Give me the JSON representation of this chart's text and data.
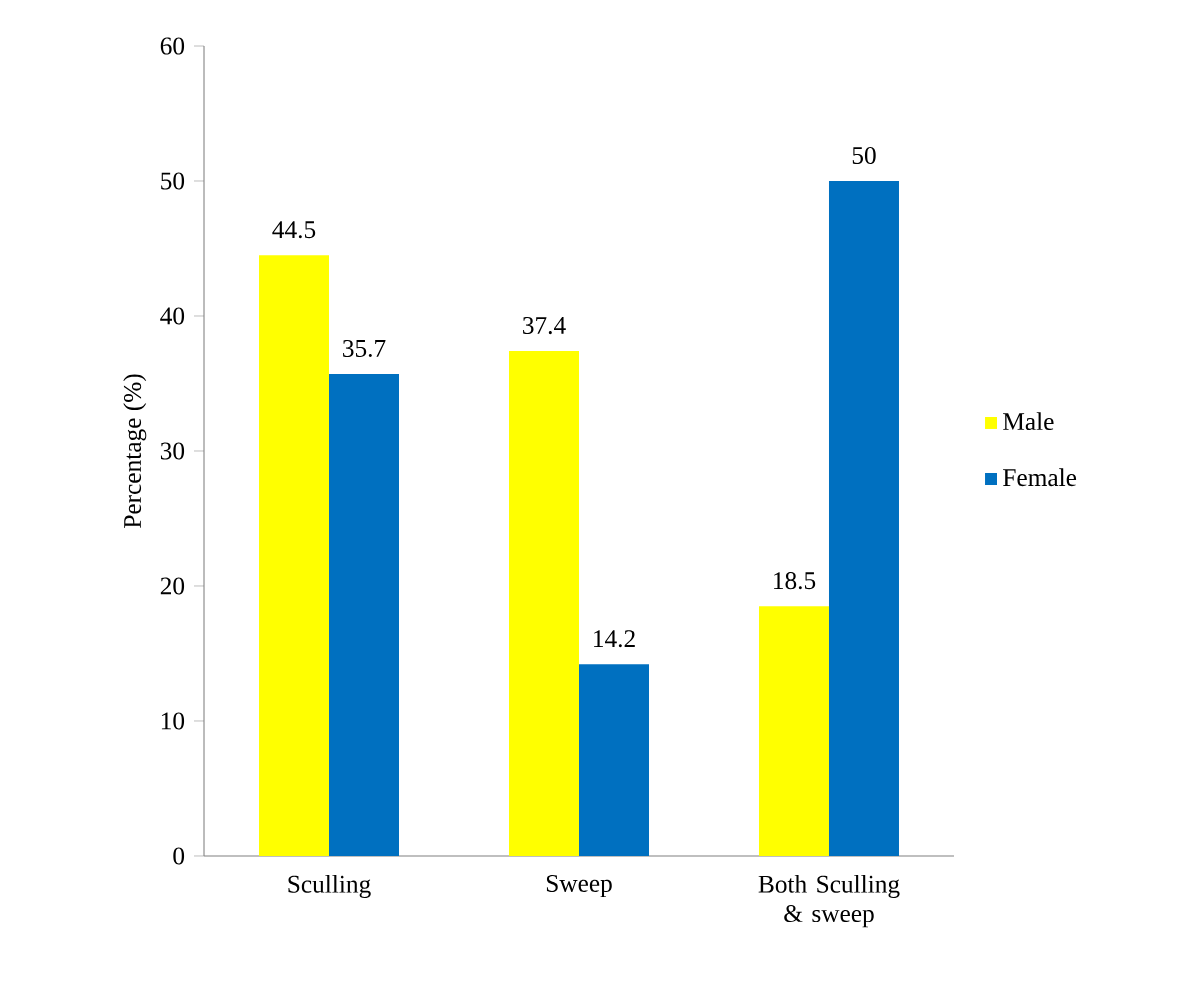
{
  "chart_data": {
    "type": "bar",
    "ylabel": "Percentage (%)",
    "categories": [
      "Sculling",
      "Sweep",
      "Both Sculling & sweep"
    ],
    "series": [
      {
        "name": "Male",
        "color": "#ffff00",
        "values": [
          44.5,
          37.4,
          18.5
        ]
      },
      {
        "name": "Female",
        "color": "#0070c0",
        "values": [
          35.7,
          14.2,
          50
        ]
      }
    ],
    "ylim": [
      0,
      60
    ],
    "yticks": [
      0,
      10,
      20,
      30,
      40,
      50,
      60
    ],
    "data_labels": true,
    "legend": "right",
    "grid": false
  }
}
